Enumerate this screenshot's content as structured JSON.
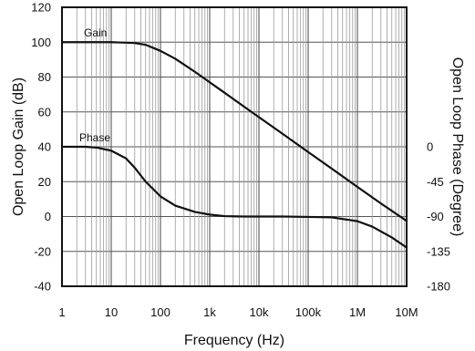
{
  "chart_data": {
    "type": "line",
    "xlabel": "Frequency (Hz)",
    "ylabel": "Open Loop Gain (dB)",
    "y2label": "Open Loop Phase (Degree)",
    "x_scale": "log",
    "xlim": [
      1,
      10000000
    ],
    "ylim": [
      -40,
      120
    ],
    "y2lim": [
      -180,
      0
    ],
    "grid": true,
    "x_ticks": [
      {
        "value": 1,
        "label": "1"
      },
      {
        "value": 10,
        "label": "10"
      },
      {
        "value": 100,
        "label": "100"
      },
      {
        "value": 1000,
        "label": "1k"
      },
      {
        "value": 10000,
        "label": "10k"
      },
      {
        "value": 100000,
        "label": "100k"
      },
      {
        "value": 1000000,
        "label": "1M"
      },
      {
        "value": 10000000,
        "label": "10M"
      }
    ],
    "y_ticks": [
      {
        "value": 120,
        "label": "120"
      },
      {
        "value": 100,
        "label": "100"
      },
      {
        "value": 80,
        "label": "80"
      },
      {
        "value": 60,
        "label": "60"
      },
      {
        "value": 40,
        "label": "40"
      },
      {
        "value": 20,
        "label": "20"
      },
      {
        "value": 0,
        "label": "0"
      },
      {
        "value": -20,
        "label": "-20"
      },
      {
        "value": -40,
        "label": "-40"
      }
    ],
    "y2_ticks": [
      {
        "value": 0,
        "label": "0"
      },
      {
        "value": -45,
        "label": "-45"
      },
      {
        "value": -90,
        "label": "-90"
      },
      {
        "value": -135,
        "label": "-135"
      },
      {
        "value": -180,
        "label": "-180"
      }
    ],
    "series": [
      {
        "name": "Gain",
        "axis": "left",
        "x": [
          1,
          10,
          30,
          50,
          100,
          200,
          500,
          1000,
          2000,
          5000,
          10000,
          30000,
          100000,
          300000,
          1000000,
          3000000,
          10000000
        ],
        "y": [
          100,
          100,
          99.5,
          98.5,
          95,
          90.5,
          83,
          77,
          71,
          63,
          57,
          47.5,
          37,
          27.5,
          17,
          7.5,
          -2.5
        ]
      },
      {
        "name": "Phase",
        "axis": "right",
        "x": [
          1,
          3,
          5,
          10,
          20,
          30,
          50,
          100,
          200,
          500,
          1000,
          2000,
          5000,
          10000,
          30000,
          100000,
          300000,
          1000000,
          2000000,
          5000000,
          10000000
        ],
        "y": [
          0,
          0,
          -1,
          -5,
          -15,
          -27,
          -45,
          -64,
          -76,
          -84,
          -87.5,
          -89.5,
          -90,
          -90,
          -90,
          -90.5,
          -91,
          -96,
          -103,
          -117,
          -130
        ]
      }
    ]
  }
}
